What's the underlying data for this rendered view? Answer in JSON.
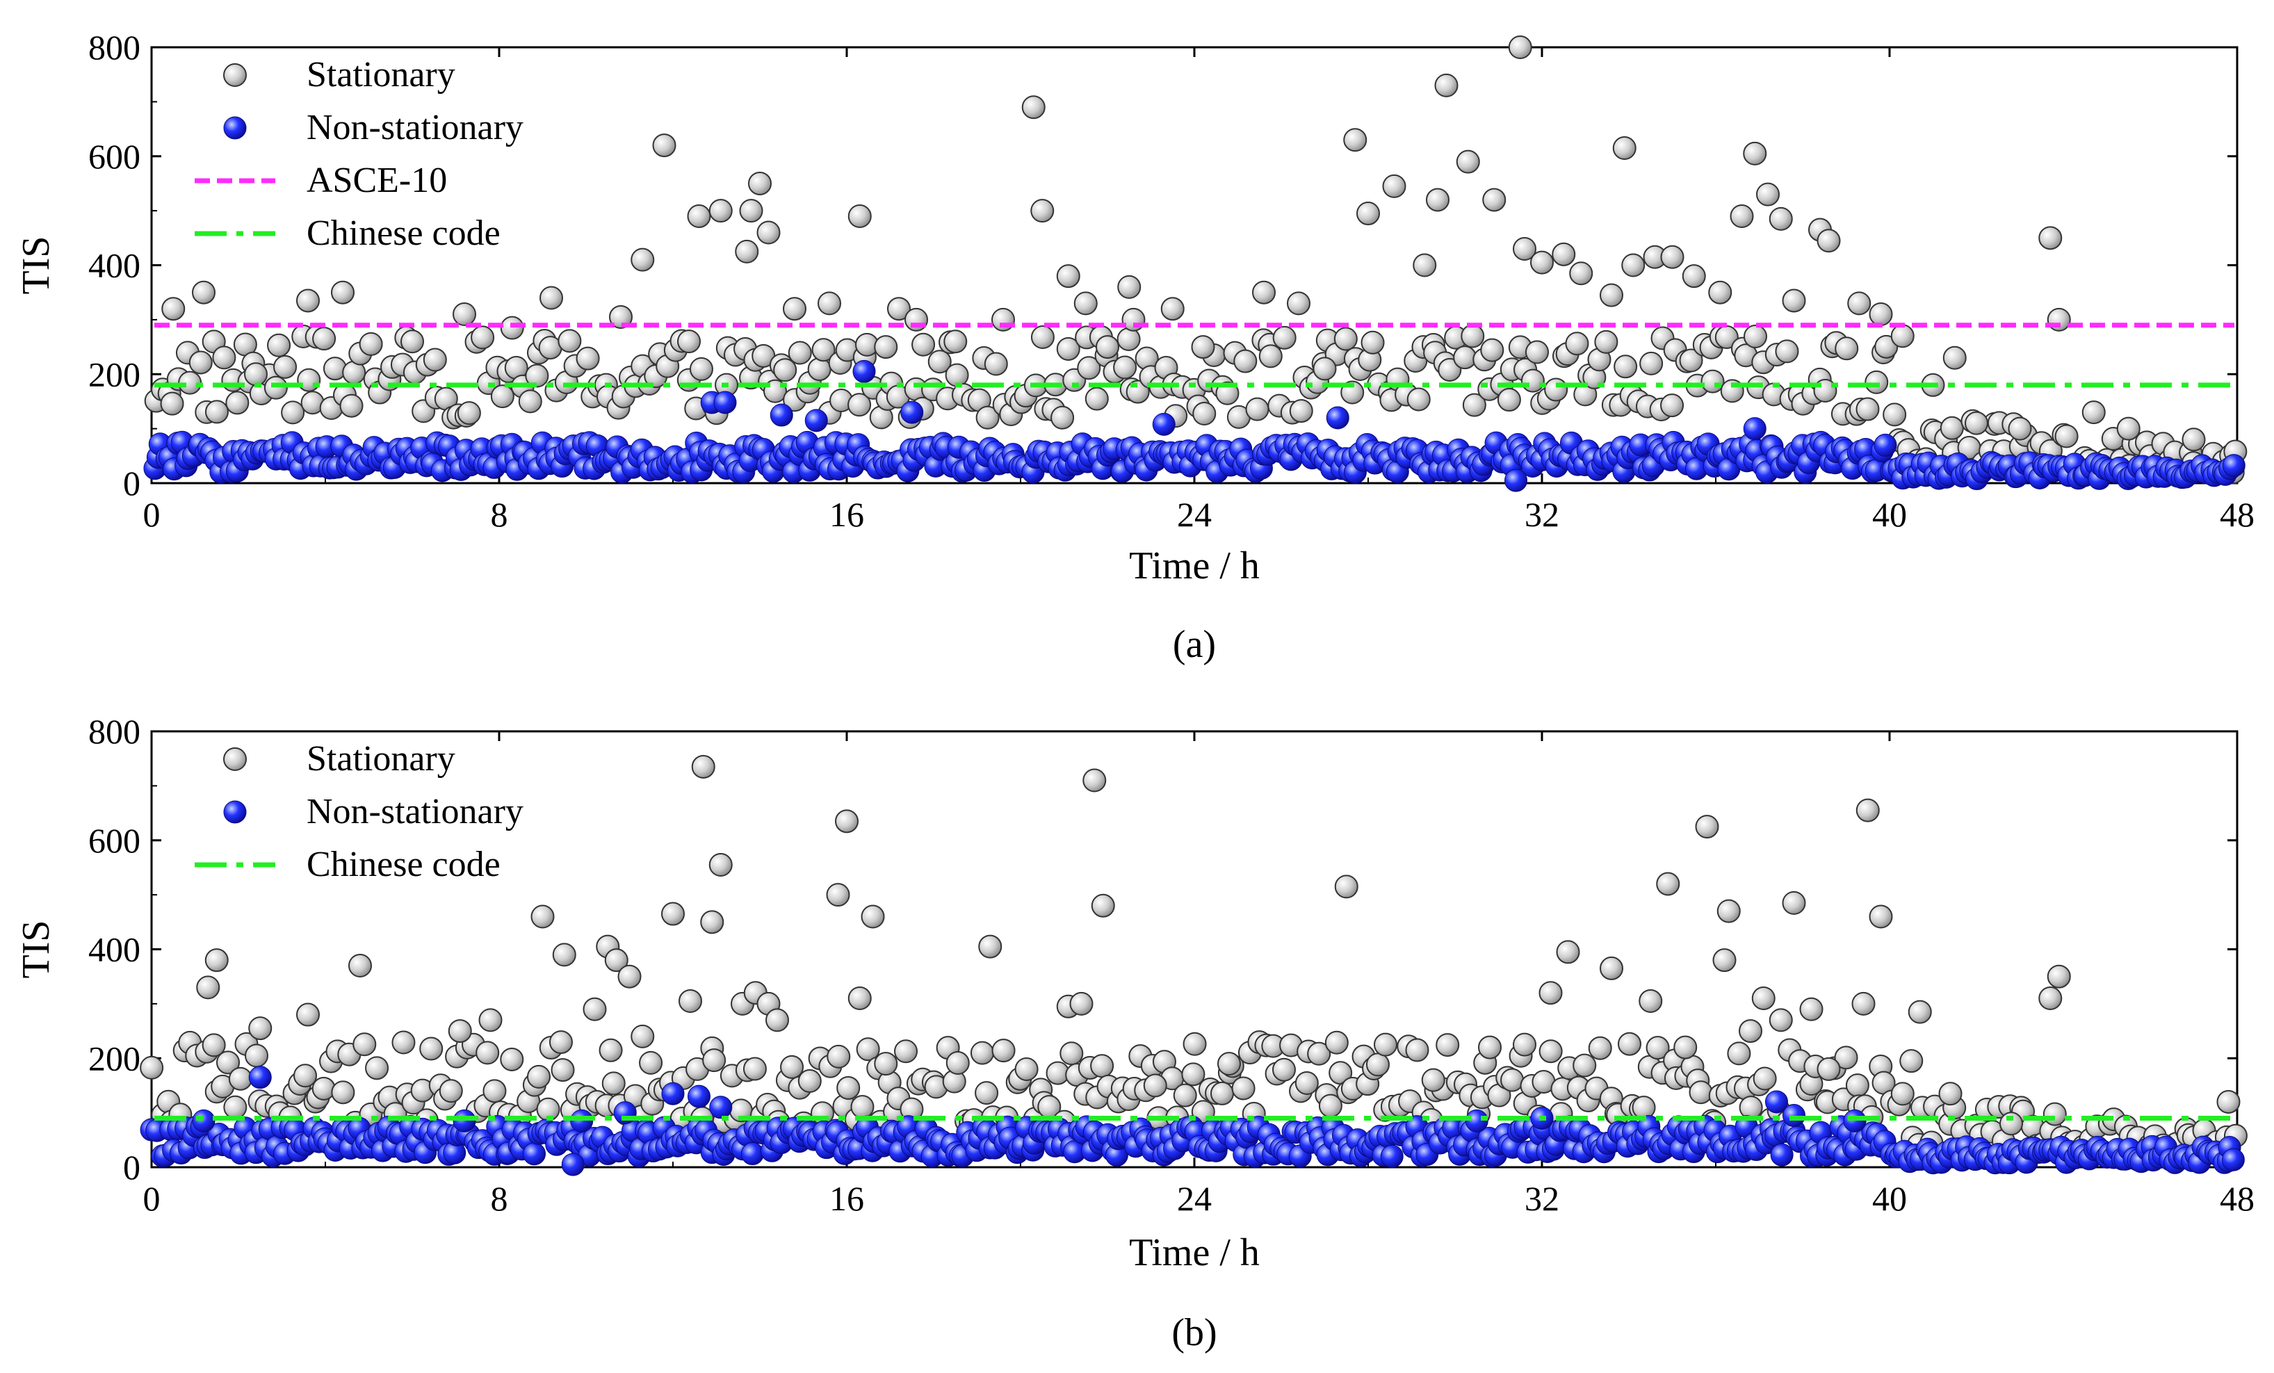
{
  "colors": {
    "stationary_fill": "#c8c8c8",
    "non_stationary_fill": "#1a1aff",
    "asce_line": "#ff2bff",
    "chinese_line": "#22ee22"
  },
  "chart_data": [
    {
      "type": "scatter",
      "panel_label": "(a)",
      "xlabel": "Time / h",
      "ylabel": "TIS",
      "xlim": [
        0,
        48
      ],
      "ylim": [
        0,
        800
      ],
      "x_ticks": [
        "0",
        "8",
        "16",
        "24",
        "32",
        "40",
        "48"
      ],
      "y_ticks": [
        "0",
        "200",
        "400",
        "600",
        "800"
      ],
      "legend": [
        "Stationary",
        "Non-stationary",
        "ASCE-10",
        "Chinese code"
      ],
      "legend_position": "top-left",
      "reference_lines": [
        {
          "name": "ASCE-10",
          "value": 290,
          "style": "dashed"
        },
        {
          "name": "Chinese code",
          "value": 180,
          "style": "dash-dot"
        }
      ],
      "highlight_points": {
        "stationary": [
          [
            0.5,
            320
          ],
          [
            1.2,
            350
          ],
          [
            2.4,
            200
          ],
          [
            3.6,
            335
          ],
          [
            4.4,
            350
          ],
          [
            6.0,
            260
          ],
          [
            7.2,
            310
          ],
          [
            8.3,
            285
          ],
          [
            9.2,
            340
          ],
          [
            10.8,
            305
          ],
          [
            11.3,
            410
          ],
          [
            11.8,
            620
          ],
          [
            12.6,
            490
          ],
          [
            13.1,
            500
          ],
          [
            13.7,
            425
          ],
          [
            13.8,
            500
          ],
          [
            14.0,
            550
          ],
          [
            14.2,
            460
          ],
          [
            14.8,
            320
          ],
          [
            15.6,
            330
          ],
          [
            16.3,
            490
          ],
          [
            16.9,
            250
          ],
          [
            17.2,
            320
          ],
          [
            17.6,
            300
          ],
          [
            18.5,
            260
          ],
          [
            19.6,
            300
          ],
          [
            20.3,
            690
          ],
          [
            20.5,
            500
          ],
          [
            21.1,
            380
          ],
          [
            21.5,
            330
          ],
          [
            22.0,
            250
          ],
          [
            22.5,
            360
          ],
          [
            22.6,
            300
          ],
          [
            23.5,
            320
          ],
          [
            24.2,
            250
          ],
          [
            25.6,
            350
          ],
          [
            26.4,
            330
          ],
          [
            27.0,
            210
          ],
          [
            27.7,
            630
          ],
          [
            28.0,
            495
          ],
          [
            28.6,
            545
          ],
          [
            29.3,
            400
          ],
          [
            29.6,
            520
          ],
          [
            29.8,
            730
          ],
          [
            30.3,
            590
          ],
          [
            30.9,
            520
          ],
          [
            31.5,
            800
          ],
          [
            31.6,
            430
          ],
          [
            32.0,
            405
          ],
          [
            32.5,
            420
          ],
          [
            32.9,
            385
          ],
          [
            33.6,
            345
          ],
          [
            33.9,
            615
          ],
          [
            34.1,
            400
          ],
          [
            34.6,
            415
          ],
          [
            35.0,
            415
          ],
          [
            35.5,
            380
          ],
          [
            36.1,
            350
          ],
          [
            36.6,
            490
          ],
          [
            36.9,
            605
          ],
          [
            37.2,
            530
          ],
          [
            37.5,
            485
          ],
          [
            37.8,
            335
          ],
          [
            38.4,
            465
          ],
          [
            38.6,
            445
          ],
          [
            39.3,
            330
          ],
          [
            39.8,
            310
          ],
          [
            40.3,
            270
          ],
          [
            41.0,
            180
          ],
          [
            41.5,
            230
          ],
          [
            42.0,
            110
          ],
          [
            43.0,
            100
          ],
          [
            43.7,
            450
          ],
          [
            43.9,
            300
          ],
          [
            44.7,
            130
          ],
          [
            45.5,
            100
          ],
          [
            47.0,
            80
          ],
          [
            47.9,
            20
          ]
        ],
        "non_stationary": [
          [
            12.9,
            148
          ],
          [
            13.2,
            148
          ],
          [
            14.5,
            125
          ],
          [
            15.3,
            115
          ],
          [
            16.4,
            205
          ],
          [
            17.5,
            130
          ],
          [
            23.3,
            108
          ],
          [
            27.3,
            120
          ],
          [
            36.9,
            100
          ],
          [
            31.4,
            5
          ]
        ]
      },
      "series_generation": {
        "stationary_baseline": "30-260 cloud, dense across 0-40 h; decaying 40-48 h",
        "non_stationary_baseline": "20-80 dense band across 0-48 h"
      }
    },
    {
      "type": "scatter",
      "panel_label": "(b)",
      "xlabel": "Time / h",
      "ylabel": "TIS",
      "xlim": [
        0,
        48
      ],
      "ylim": [
        0,
        800
      ],
      "x_ticks": [
        "0",
        "8",
        "16",
        "24",
        "32",
        "40",
        "48"
      ],
      "y_ticks": [
        "0",
        "200",
        "400",
        "600",
        "800"
      ],
      "legend": [
        "Stationary",
        "Non-stationary",
        "Chinese code"
      ],
      "legend_position": "top-left",
      "reference_lines": [
        {
          "name": "Chinese code",
          "value": 90,
          "style": "dash-dot"
        }
      ],
      "highlight_points": {
        "stationary": [
          [
            1.3,
            330
          ],
          [
            1.5,
            380
          ],
          [
            2.5,
            255
          ],
          [
            3.6,
            280
          ],
          [
            4.8,
            370
          ],
          [
            7.1,
            250
          ],
          [
            7.8,
            270
          ],
          [
            9.0,
            460
          ],
          [
            9.5,
            390
          ],
          [
            10.2,
            290
          ],
          [
            10.5,
            405
          ],
          [
            10.7,
            380
          ],
          [
            11.0,
            350
          ],
          [
            11.3,
            240
          ],
          [
            12.0,
            465
          ],
          [
            12.4,
            305
          ],
          [
            12.7,
            735
          ],
          [
            12.9,
            450
          ],
          [
            13.1,
            555
          ],
          [
            13.6,
            300
          ],
          [
            13.9,
            320
          ],
          [
            14.2,
            300
          ],
          [
            14.4,
            270
          ],
          [
            15.8,
            500
          ],
          [
            16.0,
            635
          ],
          [
            16.3,
            310
          ],
          [
            16.6,
            460
          ],
          [
            16.9,
            190
          ],
          [
            19.3,
            405
          ],
          [
            21.1,
            295
          ],
          [
            21.4,
            300
          ],
          [
            21.7,
            710
          ],
          [
            21.9,
            480
          ],
          [
            23.1,
            150
          ],
          [
            24.8,
            190
          ],
          [
            27.5,
            515
          ],
          [
            28.4,
            225
          ],
          [
            29.5,
            160
          ],
          [
            30.8,
            220
          ],
          [
            31.6,
            225
          ],
          [
            32.2,
            320
          ],
          [
            32.6,
            395
          ],
          [
            33.6,
            365
          ],
          [
            34.5,
            305
          ],
          [
            34.9,
            520
          ],
          [
            35.3,
            220
          ],
          [
            35.8,
            625
          ],
          [
            36.2,
            380
          ],
          [
            36.3,
            470
          ],
          [
            36.8,
            250
          ],
          [
            37.1,
            310
          ],
          [
            37.5,
            270
          ],
          [
            37.8,
            485
          ],
          [
            38.2,
            290
          ],
          [
            38.6,
            180
          ],
          [
            39.4,
            300
          ],
          [
            39.5,
            655
          ],
          [
            39.8,
            460
          ],
          [
            40.5,
            195
          ],
          [
            40.7,
            285
          ],
          [
            41.4,
            135
          ],
          [
            42.8,
            80
          ],
          [
            43.7,
            310
          ],
          [
            43.9,
            350
          ],
          [
            46.3,
            40
          ],
          [
            47.8,
            120
          ]
        ],
        "non_stationary": [
          [
            1.2,
            85
          ],
          [
            2.5,
            165
          ],
          [
            7.2,
            85
          ],
          [
            9.7,
            5
          ],
          [
            9.9,
            85
          ],
          [
            10.9,
            100
          ],
          [
            12.0,
            135
          ],
          [
            12.6,
            130
          ],
          [
            13.1,
            110
          ],
          [
            30.5,
            85
          ],
          [
            32.0,
            90
          ],
          [
            37.4,
            120
          ],
          [
            37.8,
            95
          ],
          [
            39.2,
            85
          ]
        ]
      },
      "series_generation": {
        "stationary_baseline": "80-250 cloud, dense across 0-40 h; decaying 40-48 h",
        "non_stationary_baseline": "20-70 dense band across 0-48 h"
      }
    }
  ]
}
